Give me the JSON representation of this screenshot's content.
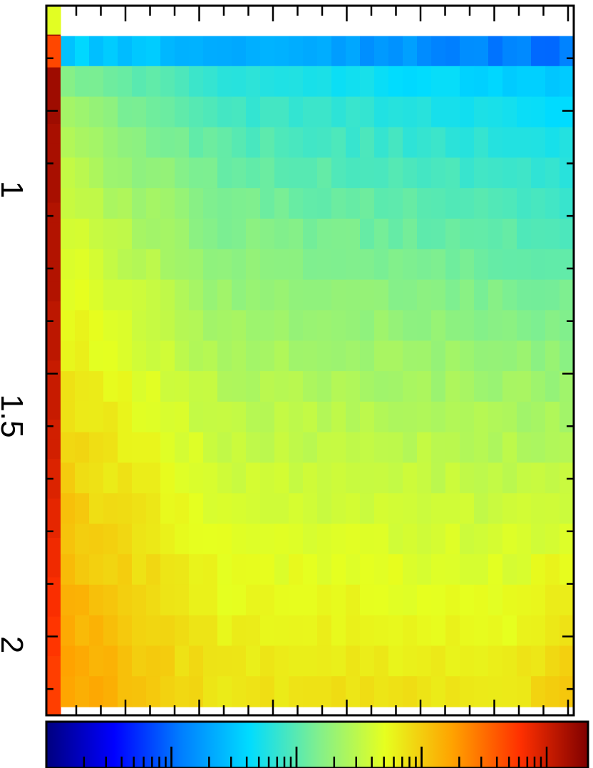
{
  "chart_data": {
    "type": "heatmap",
    "orientation": "rotated-90",
    "axis": {
      "ticks": [
        {
          "value": 1,
          "label": "1"
        },
        {
          "value": 1.5,
          "label": "1.5"
        },
        {
          "value": 2,
          "label": "2"
        }
      ],
      "range": [
        0.8,
        2.15
      ]
    },
    "grid": {
      "rows": 22,
      "cols": 36
    },
    "colormap": {
      "name": "jet",
      "scale": "log",
      "stops": [
        "#00007f",
        "#0000ff",
        "#007fff",
        "#00dcff",
        "#7fef8f",
        "#e6ff1f",
        "#ffa200",
        "#ff3000",
        "#7f0000"
      ]
    },
    "first_row_value": 0.85,
    "first_col_values": [
      0.9,
      0.98,
      0.98,
      0.97,
      0.97,
      0.97,
      0.96,
      0.96,
      0.96,
      0.96,
      0.95,
      0.95,
      0.95,
      0.95,
      0.95,
      0.94,
      0.94,
      0.94,
      0.93,
      0.93,
      0.93,
      0.92,
      0.92,
      0.91,
      0.91,
      0.9,
      0.9,
      0.89,
      0.89,
      0.88,
      0.88,
      0.87,
      0.87,
      0.86,
      0.86,
      0.86
    ],
    "colorbar": {
      "min": 0,
      "max": 1,
      "major_tick_count": 4,
      "minor_ticks_per_decade": 8
    }
  }
}
